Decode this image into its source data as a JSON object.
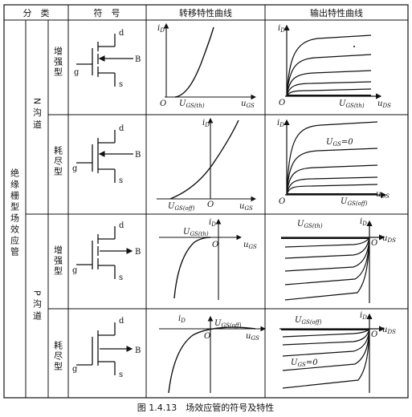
{
  "header": {
    "classification": "分　类",
    "symbol": "符　号",
    "transfer_curve": "转移特性曲线",
    "output_curve": "输出特性曲线"
  },
  "category": {
    "main": "绝缘栅型场效应管",
    "n_channel": "N沟道",
    "p_channel": "P沟道",
    "enhancement": "增强型",
    "depletion": "耗尽型"
  },
  "terminals": {
    "d": "d",
    "g": "g",
    "s": "s",
    "b": "B"
  },
  "axes": {
    "iD": "i",
    "iD_sub": "D",
    "uGS": "u",
    "uGS_sub": "GS",
    "uDS": "u",
    "uDS_sub": "DS",
    "origin": "O"
  },
  "annotations": {
    "ugs_th": "U",
    "ugs_th_sub": "GS(th)",
    "ugs_off": "U",
    "ugs_off_sub": "GS(off)",
    "ugs_zero": "U",
    "ugs_zero_sub": "GS",
    "ugs_zero_val": "=0"
  },
  "caption": "图 1.4.13　场效应管的符号及特性"
}
